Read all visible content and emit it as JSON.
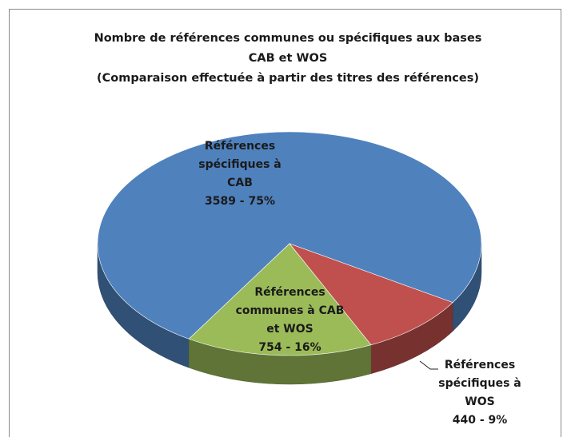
{
  "chart_data": {
    "type": "pie",
    "title": "Nombre de références communes ou spécifiques aux bases CAB et WOS",
    "subtitle": "(Comparaison effectuée à partir des titres des références)",
    "categories": [
      "Références spécifiques à CAB",
      "Références spécifiques à WOS",
      "Références communes à CAB et WOS"
    ],
    "values": [
      3589,
      440,
      754
    ],
    "value_labels": [
      "3589 - 75%",
      "440 - 9%",
      "754 - 16%"
    ],
    "colors": [
      "#4f81bd",
      "#c0504d",
      "#9bbb59"
    ]
  }
}
